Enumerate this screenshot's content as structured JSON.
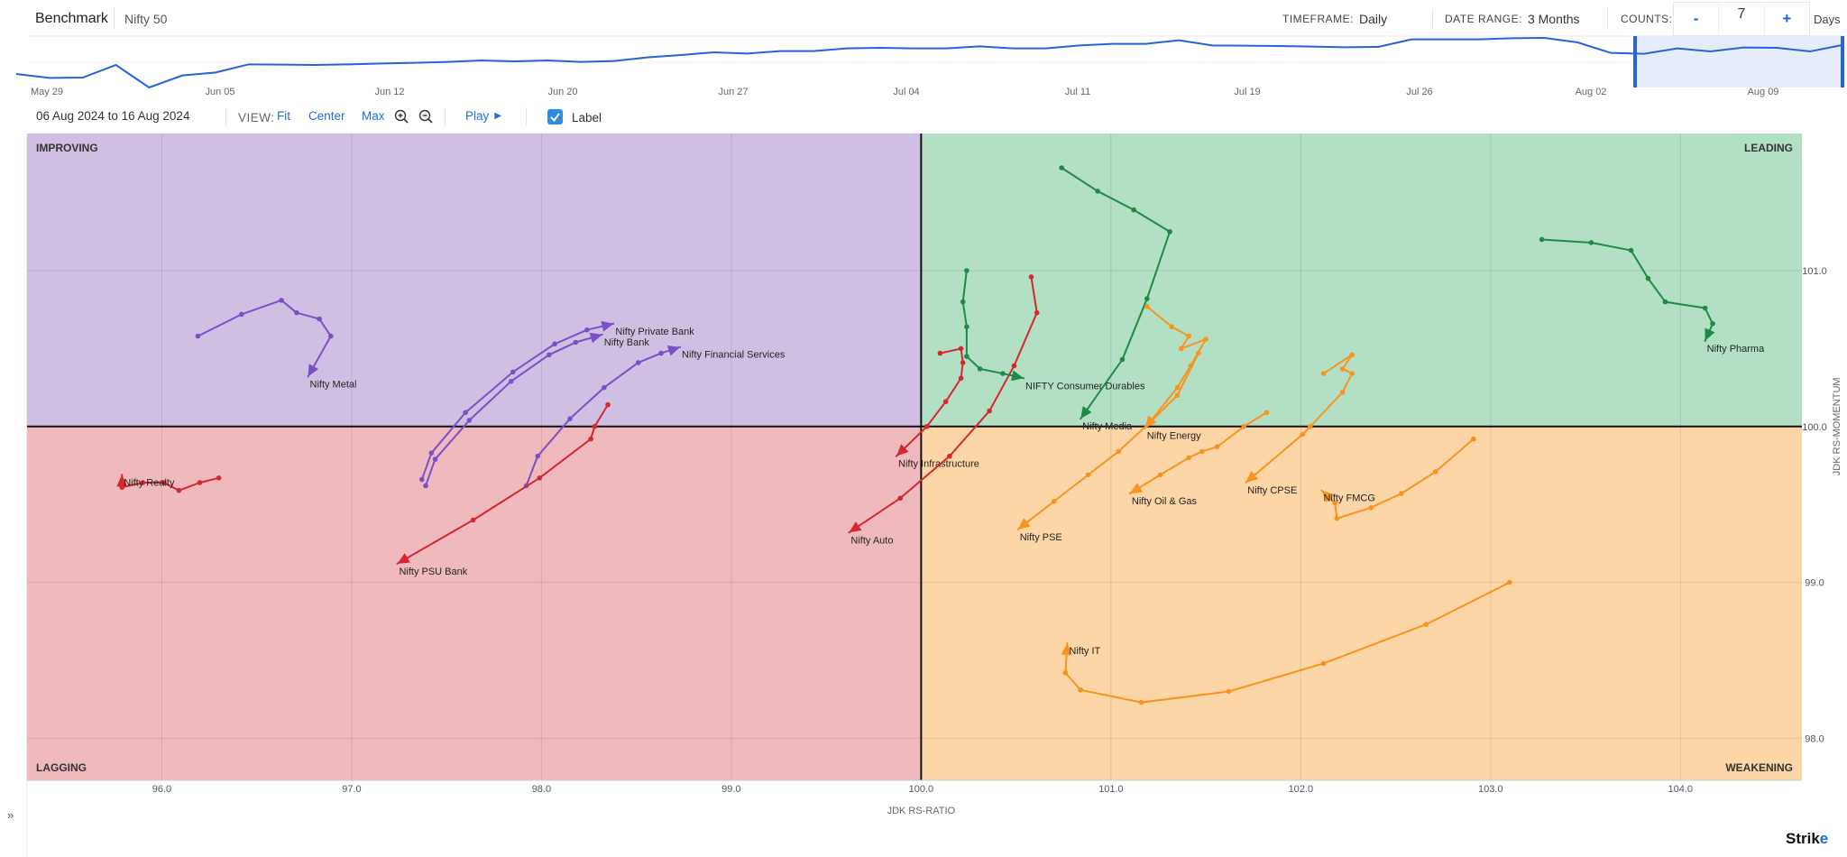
{
  "header": {
    "title": "Benchmark",
    "benchmark": "Nifty 50",
    "timeframe_label": "TIMEFRAME:",
    "timeframe_value": "Daily",
    "date_range_label": "DATE RANGE:",
    "date_range_value": "3 Months",
    "counts_label": "COUNTS:",
    "counts_minus": "-",
    "counts_value": "7",
    "counts_plus": "+",
    "counts_unit": "Days"
  },
  "timeline": {
    "dates": [
      "May 29",
      "Jun 05",
      "Jun 12",
      "Jun 20",
      "Jun 27",
      "Jul 04",
      "Jul 11",
      "Jul 19",
      "Jul 26",
      "Aug 02",
      "Aug 09"
    ],
    "benchmark_series": [
      55,
      42,
      43,
      85,
      10,
      50,
      60,
      87,
      86,
      85,
      87,
      90,
      92,
      95,
      100,
      97,
      100,
      95,
      98,
      110,
      118,
      127,
      123,
      131,
      131,
      140,
      142,
      140,
      140,
      147,
      140,
      140,
      150,
      155,
      155,
      167,
      150,
      149,
      148,
      146,
      144,
      145,
      170,
      170,
      170,
      174,
      175,
      160,
      125,
      122,
      140,
      130,
      143,
      142,
      130,
      152
    ],
    "selection_fraction": [
      0.886,
      1.0
    ],
    "line_color": "#2563d8",
    "selection_color": "#e6ecfb"
  },
  "controls": {
    "from_date": "06 Aug 2024",
    "to_word": "to",
    "to_date": "16 Aug 2024",
    "view_label": "VIEW:",
    "fit": "Fit",
    "center": "Center",
    "max": "Max",
    "play": "Play",
    "label_toggle": "Label",
    "label_checked": true
  },
  "footer": {
    "expand": "»",
    "logo_main": "Strik",
    "logo_accent": "e"
  },
  "chart_data": {
    "type": "scatter",
    "subtype": "relative-rotation-graph",
    "xlabel": "JDK RS-RATIO",
    "ylabel": "JDK RS-MOMENTUM",
    "xlim": [
      95.29,
      104.64
    ],
    "ylim": [
      97.73,
      101.88
    ],
    "xticks": [
      96.0,
      97.0,
      98.0,
      99.0,
      100.0,
      101.0,
      102.0,
      103.0,
      104.0
    ],
    "yticks": [
      98.0,
      99.0,
      100.0,
      101.0
    ],
    "center": [
      100,
      100
    ],
    "grid": true,
    "quadrants": [
      {
        "name": "IMPROVING",
        "position": "top-left",
        "color": "#cfc0e3"
      },
      {
        "name": "LEADING",
        "position": "top-right",
        "color": "#b3dfc4"
      },
      {
        "name": "LAGGING",
        "position": "bottom-left",
        "color": "#efb9bd"
      },
      {
        "name": "WEAKENING",
        "position": "bottom-right",
        "color": "#fdd6a7"
      }
    ],
    "colors": {
      "improving": "#7b4fc6",
      "leading": "#1f8a46",
      "lagging": "#d4282f",
      "weakening": "#f7931e"
    },
    "series": [
      {
        "name": "Nifty Metal",
        "quadrant": "improving",
        "x": [
          96.19,
          96.42,
          96.63,
          96.71,
          96.83,
          96.89,
          96.77
        ],
        "y": [
          100.58,
          100.72,
          100.81,
          100.73,
          100.69,
          100.58,
          100.32
        ]
      },
      {
        "name": "Nifty Private Bank",
        "quadrant": "improving",
        "x": [
          97.37,
          97.42,
          97.6,
          97.85,
          98.07,
          98.24,
          98.38
        ],
        "y": [
          99.66,
          99.83,
          100.09,
          100.35,
          100.53,
          100.62,
          100.66
        ]
      },
      {
        "name": "Nifty Bank",
        "quadrant": "improving",
        "x": [
          97.39,
          97.44,
          97.62,
          97.84,
          98.04,
          98.18,
          98.32
        ],
        "y": [
          99.62,
          99.79,
          100.04,
          100.29,
          100.46,
          100.54,
          100.59
        ]
      },
      {
        "name": "Nifty Financial Services",
        "quadrant": "improving",
        "x": [
          97.92,
          97.98,
          98.15,
          98.33,
          98.51,
          98.63,
          98.73
        ],
        "y": [
          99.62,
          99.81,
          100.05,
          100.25,
          100.41,
          100.47,
          100.51
        ]
      },
      {
        "name": "Nifty Realty",
        "quadrant": "lagging",
        "x": [
          96.3,
          96.2,
          96.09,
          96.01,
          95.9,
          95.79,
          95.79
        ],
        "y": [
          99.67,
          99.64,
          99.59,
          99.64,
          99.64,
          99.61,
          99.69
        ]
      },
      {
        "name": "Nifty PSU Bank",
        "quadrant": "lagging",
        "x": [
          98.35,
          98.28,
          98.26,
          97.99,
          97.64,
          97.24
        ],
        "y": [
          100.14,
          100.0,
          99.92,
          99.67,
          99.4,
          99.12
        ]
      },
      {
        "name": "Nifty Infrastructure",
        "quadrant": "lagging",
        "x": [
          100.1,
          100.21,
          100.22,
          100.21,
          100.13,
          100.03,
          99.87
        ],
        "y": [
          100.47,
          100.5,
          100.41,
          100.31,
          100.16,
          100.0,
          99.81
        ]
      },
      {
        "name": "Nifty Auto",
        "quadrant": "lagging",
        "x": [
          100.58,
          100.61,
          100.49,
          100.36,
          100.15,
          99.89,
          99.62
        ],
        "y": [
          100.96,
          100.73,
          100.39,
          100.1,
          99.81,
          99.54,
          99.32
        ]
      },
      {
        "name": "NIFTY Consumer Durables",
        "quadrant": "leading",
        "x": [
          100.24,
          100.22,
          100.24,
          100.24,
          100.31,
          100.43,
          100.54
        ],
        "y": [
          101.0,
          100.8,
          100.64,
          100.45,
          100.37,
          100.34,
          100.31
        ]
      },
      {
        "name": "Nifty Media",
        "quadrant": "leading",
        "x": [
          100.74,
          100.93,
          101.12,
          101.31,
          101.19,
          101.06,
          100.84
        ],
        "y": [
          101.66,
          101.51,
          101.39,
          101.25,
          100.82,
          100.43,
          100.05
        ]
      },
      {
        "name": "Nifty Pharma",
        "quadrant": "leading",
        "x": [
          103.27,
          103.53,
          103.74,
          103.83,
          103.92,
          104.13,
          104.17,
          104.13
        ],
        "y": [
          101.2,
          101.18,
          101.13,
          100.95,
          100.8,
          100.76,
          100.66,
          100.55
        ]
      },
      {
        "name": "Nifty Energy",
        "quadrant": "weakening",
        "x": [
          101.19,
          101.32,
          101.41,
          101.37,
          101.5,
          101.42,
          101.35,
          101.18
        ],
        "y": [
          100.77,
          100.64,
          100.58,
          100.5,
          100.56,
          100.39,
          100.25,
          99.99
        ]
      },
      {
        "name": "Nifty PSE",
        "quadrant": "weakening",
        "x": [
          101.46,
          101.35,
          101.2,
          101.04,
          100.88,
          100.7,
          100.51
        ],
        "y": [
          100.47,
          100.2,
          100.02,
          99.84,
          99.69,
          99.52,
          99.34
        ]
      },
      {
        "name": "Nifty Oil & Gas",
        "quadrant": "weakening",
        "x": [
          101.82,
          101.7,
          101.56,
          101.48,
          101.41,
          101.26,
          101.1
        ],
        "y": [
          100.09,
          100.0,
          99.87,
          99.84,
          99.8,
          99.69,
          99.57
        ]
      },
      {
        "name": "Nifty CPSE",
        "quadrant": "weakening",
        "x": [
          102.12,
          102.27,
          102.22,
          102.27,
          102.22,
          102.05,
          102.01,
          101.71
        ],
        "y": [
          100.34,
          100.46,
          100.37,
          100.34,
          100.22,
          100.0,
          99.95,
          99.64
        ]
      },
      {
        "name": "Nifty FMCG",
        "quadrant": "weakening",
        "x": [
          102.91,
          102.71,
          102.53,
          102.37,
          102.19,
          102.18,
          102.11
        ],
        "y": [
          99.92,
          99.71,
          99.57,
          99.48,
          99.41,
          99.51,
          99.59
        ]
      },
      {
        "name": "Nifty IT",
        "quadrant": "weakening",
        "x": [
          103.1,
          102.66,
          102.12,
          101.62,
          101.16,
          100.84,
          100.76,
          100.77
        ],
        "y": [
          99.0,
          98.73,
          98.48,
          98.3,
          98.23,
          98.31,
          98.42,
          98.61
        ]
      }
    ]
  }
}
